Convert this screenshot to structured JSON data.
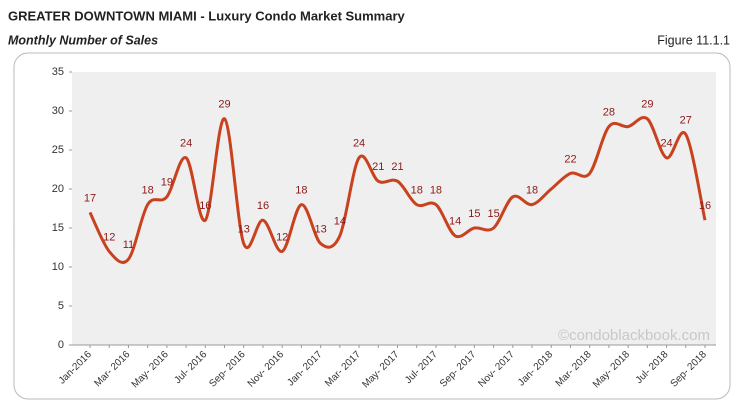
{
  "chart_data": {
    "type": "line",
    "title": "GREATER DOWNTOWN MIAMI - Luxury Condo Market Summary",
    "subtitle": "Monthly Number of Sales",
    "figure_label": "Figure 11.1.1",
    "watermark": "©condoblackbook.com",
    "categories": [
      "Jan-2016",
      null,
      "Mar- 2016",
      null,
      "May- 2016",
      null,
      "Jul- 2016",
      null,
      "Sep- 2016",
      null,
      "Nov- 2016",
      null,
      "Jan- 2017",
      null,
      "Mar- 2017",
      null,
      "May- 2017",
      null,
      "Jul- 2017",
      null,
      "Sep- 2017",
      null,
      "Nov- 2017",
      null,
      "Jan- 2018",
      null,
      "Mar- 2018",
      null,
      "May- 2018",
      null,
      "Jul- 2018",
      null,
      "Sep- 2018"
    ],
    "series": [
      {
        "name": "Monthly Number of Sales",
        "color": "#c9421f",
        "values": [
          17,
          12,
          11,
          18,
          19,
          24,
          16,
          29,
          13,
          16,
          12,
          18,
          13,
          14,
          24,
          21,
          21,
          18,
          18,
          14,
          15,
          15,
          19,
          18,
          20,
          22,
          22,
          28,
          28,
          29,
          24,
          27,
          16
        ],
        "value_labels": [
          "17",
          "12",
          "11",
          "18",
          "19",
          "24",
          "16",
          "29",
          "13",
          "16",
          "12",
          "18",
          "13",
          "14",
          "24",
          "21",
          "21",
          "18",
          "18",
          "14",
          "15",
          "15",
          null,
          "18",
          null,
          "22",
          null,
          "28",
          null,
          "29",
          "24",
          "27",
          "16"
        ]
      }
    ],
    "ylim": [
      0,
      35
    ],
    "yticks": [
      0,
      5,
      10,
      15,
      20,
      25,
      30,
      35
    ],
    "label_color": "#8b1a1a",
    "plot_background": "#efefef"
  }
}
